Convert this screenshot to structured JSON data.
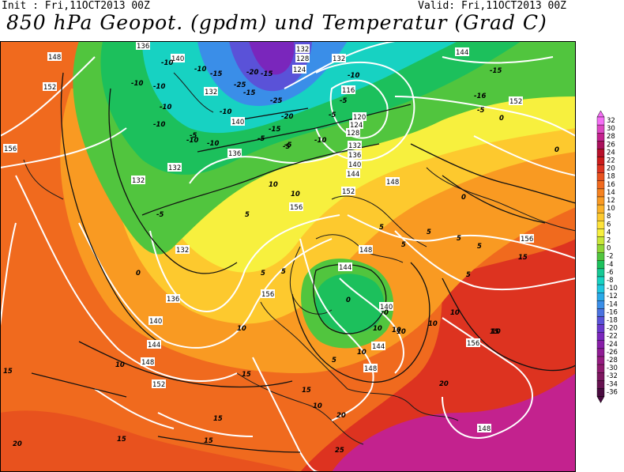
{
  "header": {
    "init": "Init : Fri,11OCT2013 00Z",
    "valid": "Valid: Fri,11OCT2013 00Z",
    "title": "850 hPa Geopot. (gpdm) und Temperatur (Grad C)"
  },
  "legend": {
    "colors": {
      "32": "#f46ef4",
      "30": "#dc48c2",
      "28": "#c3228e",
      "26": "#a9105c",
      "24": "#b8102a",
      "22": "#cc1b1b",
      "20": "#dd3320",
      "18": "#e8521e",
      "16": "#f06a1e",
      "14": "#f5821f",
      "12": "#f99a22",
      "10": "#fbb128",
      "8": "#fdc92e",
      "6": "#fde23a",
      "4": "#f7f03e",
      "2": "#c9e637",
      "0": "#8fd536",
      "-2": "#51c53e",
      "-4": "#1cc05c",
      "-6": "#16c895",
      "-8": "#17d2c2",
      "-10": "#1fc7df",
      "-12": "#29a9e8",
      "-14": "#3a8ee8",
      "-16": "#4a72e0",
      "-18": "#5a52d8",
      "-20": "#6a38cc",
      "-22": "#7a26bc",
      "-24": "#881ea8",
      "-26": "#901b94",
      "-28": "#951b80",
      "-30": "#8e1a6e",
      "-32": "#7d1760",
      "-34": "#661250",
      "-36": "#4a0b40"
    },
    "labels": [
      "32",
      "30",
      "28",
      "26",
      "24",
      "22",
      "20",
      "18",
      "16",
      "14",
      "12",
      "10",
      "8",
      "6",
      "4",
      "2",
      "0",
      "-2",
      "-4",
      "-6",
      "-8",
      "-10",
      "-12",
      "-14",
      "-16",
      "-18",
      "-20",
      "-22",
      "-24",
      "-26",
      "-28",
      "-30",
      "-32",
      "-34",
      "-36"
    ]
  },
  "map": {
    "geopotential_labels": [
      "148",
      "136",
      "140",
      "132",
      "152",
      "132",
      "140",
      "136",
      "132",
      "132",
      "124",
      "128",
      "132",
      "116",
      "120",
      "124",
      "128",
      "132",
      "136",
      "140",
      "144",
      "152",
      "148",
      "156",
      "156",
      "156",
      "132",
      "136",
      "140",
      "144",
      "148",
      "152",
      "148",
      "144",
      "140",
      "144",
      "148",
      "156",
      "156",
      "148",
      "152",
      "144"
    ],
    "temperature_labels": [
      "-10",
      "-10",
      "-15",
      "-20",
      "-25",
      "-15",
      "-25",
      "-10",
      "-10",
      "-10",
      "-10",
      "-10",
      "-5",
      "-10",
      "-5",
      "-5",
      "-15",
      "-20",
      "-10",
      "-5",
      "-10",
      "-5",
      "-15",
      "-16",
      "-15",
      "-10",
      "0",
      "0",
      "-5",
      "-5",
      "-5",
      "0",
      "5",
      "10",
      "10",
      "5",
      "5",
      "5",
      "5",
      "0",
      "0",
      "5",
      "5",
      "5",
      "0",
      "10",
      "10",
      "10",
      "10",
      "10",
      "10",
      "10",
      "5",
      "5",
      "15",
      "15",
      "15",
      "15",
      "15",
      "15",
      "15",
      "20",
      "20",
      "20",
      "25",
      "15",
      "10",
      "10",
      "10"
    ]
  }
}
